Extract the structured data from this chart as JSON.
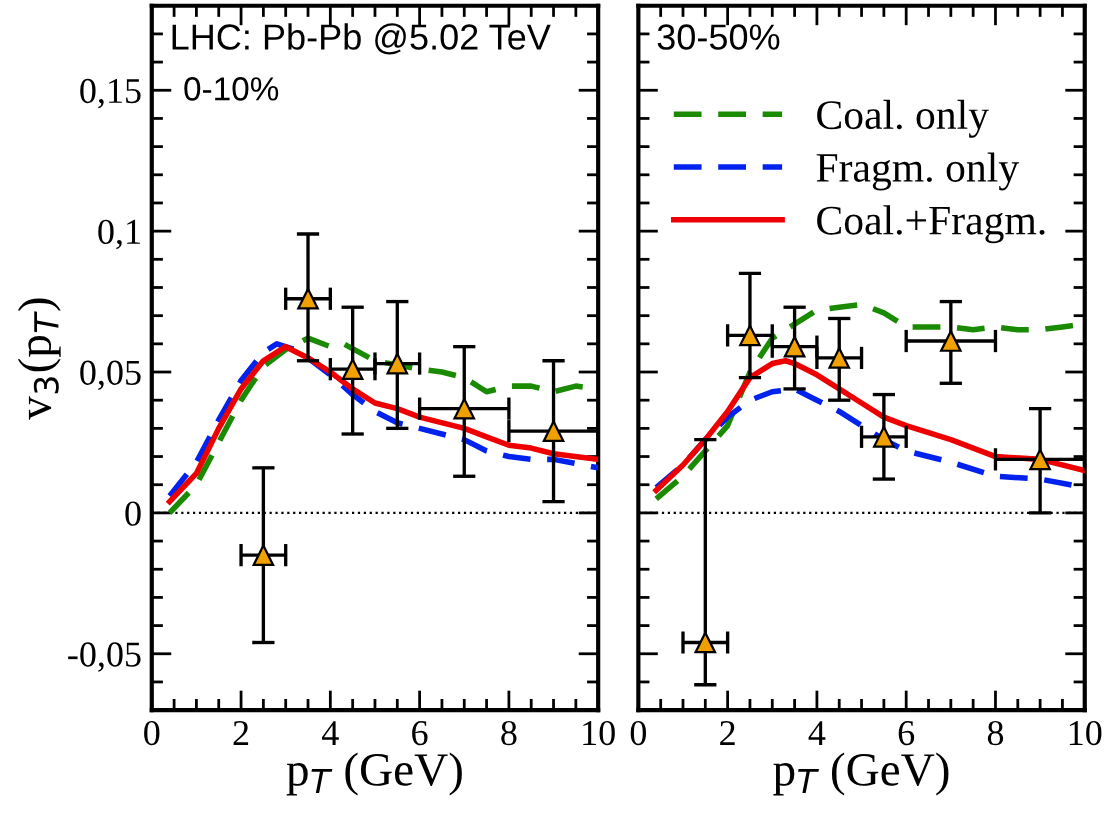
{
  "chart_data": [
    {
      "type": "line",
      "xlabel": "p$_{T}$ (GeV)",
      "ylabel": "v$_{3}$(p$_{T}$)",
      "annotations": [
        "LHC: Pb-Pb @5.02 TeV",
        "0-10%"
      ],
      "xlim": [
        0,
        10
      ],
      "xticks": [
        0,
        2,
        4,
        6,
        8,
        {
          "value": 10,
          "label": "10"
        }
      ],
      "ylim": [
        -0.07,
        0.18
      ],
      "yticks": [
        {
          "value": -0.05,
          "label": "-0,05"
        },
        0,
        {
          "value": 0.05,
          "label": "0,05"
        },
        {
          "value": 0.1,
          "label": "0,1"
        },
        {
          "value": 0.15,
          "label": "0,15"
        }
      ],
      "ref_lines": [
        {
          "axis": "y",
          "value": 0,
          "line_style": "dotted",
          "color": "#000000"
        }
      ],
      "grid": false,
      "legend": false,
      "series": [
        {
          "color": "#1a8a00",
          "line_style": "dashed",
          "x": [
            0.4,
            1,
            1.5,
            2,
            2.5,
            3,
            3.5,
            4,
            4.3,
            5,
            6,
            6.5,
            7,
            7.5,
            8,
            8.5,
            9,
            9.5,
            10
          ],
          "values": [
            0.0,
            0.01,
            0.025,
            0.04,
            0.052,
            0.058,
            0.062,
            0.059,
            0.06,
            0.054,
            0.051,
            0.05,
            0.048,
            0.043,
            0.045,
            0.045,
            0.043,
            0.045,
            0.044
          ]
        },
        {
          "color": "#0022ee",
          "line_style": "dashed",
          "x": [
            0.4,
            1,
            1.5,
            2,
            2.5,
            2.8,
            3.2,
            3.5,
            4,
            4.5,
            5,
            5.5,
            6,
            7,
            7.5,
            8,
            8.5,
            9,
            10
          ],
          "values": [
            0.006,
            0.018,
            0.033,
            0.047,
            0.057,
            0.06,
            0.058,
            0.055,
            0.049,
            0.042,
            0.036,
            0.032,
            0.03,
            0.026,
            0.022,
            0.02,
            0.019,
            0.019,
            0.016
          ]
        },
        {
          "color": "#ee0000",
          "line_style": "solid",
          "x": [
            0.4,
            1,
            1.5,
            2,
            2.5,
            3,
            3.5,
            4,
            4.5,
            5,
            5.5,
            6,
            7,
            7.5,
            8,
            8.5,
            9,
            10
          ],
          "values": [
            0.004,
            0.014,
            0.03,
            0.044,
            0.054,
            0.059,
            0.055,
            0.05,
            0.044,
            0.039,
            0.037,
            0.034,
            0.03,
            0.027,
            0.024,
            0.023,
            0.021,
            0.019
          ]
        },
        {
          "type": "scatter",
          "marker": "triangle",
          "color": "#f0a000",
          "x": [
            2.5,
            3.5,
            4.5,
            5.5,
            7,
            9
          ],
          "values": [
            -0.015,
            0.076,
            0.051,
            0.053,
            0.037,
            0.029
          ],
          "errors": [
            [
              -0.046,
              0.016
            ],
            [
              0.054,
              0.099
            ],
            [
              0.028,
              0.073
            ],
            [
              0.03,
              0.075
            ],
            [
              0.013,
              0.059
            ],
            [
              0.004,
              0.054
            ]
          ],
          "xerrors": [
            0.5,
            0.5,
            0.5,
            0.5,
            1,
            1
          ]
        }
      ]
    },
    {
      "type": "line",
      "xlabel": "p$_{T}$ (GeV)",
      "annotations": [
        "30-50%"
      ],
      "xlim": [
        0,
        10
      ],
      "xticks": [
        0,
        2,
        4,
        6,
        8,
        {
          "value": 10,
          "label": "10"
        }
      ],
      "ylim": [
        -0.07,
        0.18
      ],
      "yticks": [
        -0.05,
        0,
        0.05,
        0.1,
        0.15
      ],
      "tick_labels": "x",
      "ref_lines": [
        {
          "axis": "y",
          "value": 0,
          "line_style": "dotted",
          "color": "#000000"
        }
      ],
      "grid": false,
      "legend": "top right",
      "series": [
        {
          "name": "Coal. only",
          "color": "#1a8a00",
          "line_style": "dashed",
          "x": [
            0.4,
            1,
            1.5,
            2,
            2.5,
            3,
            3.5,
            4,
            4.5,
            5,
            5.5,
            6,
            6.5,
            7,
            7.5,
            8,
            8.5,
            9,
            9.5,
            10
          ],
          "values": [
            0.005,
            0.013,
            0.022,
            0.031,
            0.05,
            0.062,
            0.067,
            0.072,
            0.073,
            0.074,
            0.071,
            0.066,
            0.066,
            0.066,
            0.065,
            0.066,
            0.065,
            0.065,
            0.066,
            0.067
          ]
        },
        {
          "name": "Fragm. only",
          "color": "#0022ee",
          "line_style": "dashed",
          "x": [
            0.4,
            1,
            1.5,
            2,
            2.5,
            3,
            3.5,
            4,
            4.5,
            5,
            5.5,
            6,
            7,
            8,
            9,
            10
          ],
          "values": [
            0.009,
            0.017,
            0.026,
            0.034,
            0.04,
            0.043,
            0.044,
            0.04,
            0.036,
            0.031,
            0.026,
            0.022,
            0.018,
            0.013,
            0.012,
            0.009
          ]
        },
        {
          "name": "Coal.+Fragm.",
          "color": "#ee0000",
          "line_style": "solid",
          "x": [
            0.4,
            1,
            1.5,
            2,
            2.5,
            3,
            3.3,
            3.5,
            4,
            4.5,
            5,
            5.5,
            6,
            7,
            8,
            9,
            10
          ],
          "values": [
            0.008,
            0.017,
            0.026,
            0.036,
            0.048,
            0.053,
            0.054,
            0.053,
            0.049,
            0.044,
            0.039,
            0.034,
            0.031,
            0.026,
            0.02,
            0.019,
            0.015
          ]
        },
        {
          "type": "scatter",
          "marker": "triangle",
          "color": "#f0a000",
          "x": [
            1.5,
            2.5,
            3.5,
            4.5,
            5.5,
            7,
            9
          ],
          "values": [
            -0.046,
            0.063,
            0.059,
            0.055,
            0.027,
            0.061,
            0.019
          ],
          "errors": [
            [
              -0.061,
              0.026
            ],
            [
              0.048,
              0.085
            ],
            [
              0.044,
              0.073
            ],
            [
              0.04,
              0.069
            ],
            [
              0.012,
              0.042
            ],
            [
              0.046,
              0.075
            ],
            [
              0.0,
              0.037
            ]
          ],
          "xerrors": [
            0.5,
            0.5,
            0.5,
            0.5,
            0.5,
            1,
            1
          ]
        }
      ]
    }
  ]
}
